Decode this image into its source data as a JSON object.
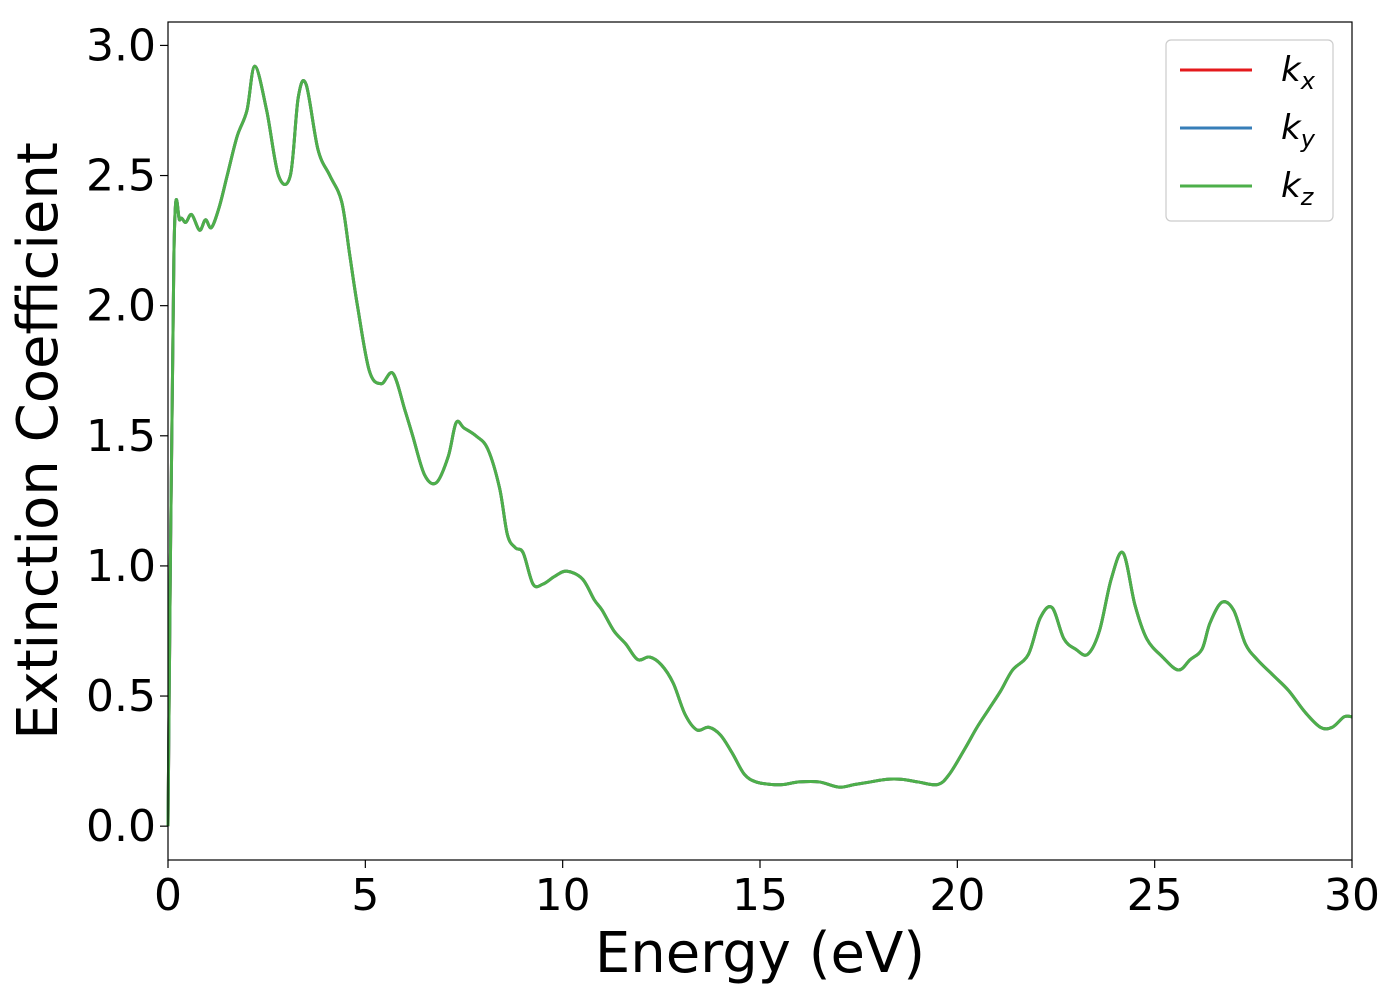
{
  "chart_data": {
    "type": "line",
    "xlabel": "Energy (eV)",
    "ylabel": "Extinction Coefficient",
    "xlim": [
      0,
      30
    ],
    "ylim": [
      -0.13,
      3.09
    ],
    "xticks": [
      0,
      5,
      10,
      15,
      20,
      25,
      30
    ],
    "xtick_labels": [
      "0",
      "5",
      "10",
      "15",
      "20",
      "25",
      "30"
    ],
    "yticks": [
      0.0,
      0.5,
      1.0,
      1.5,
      2.0,
      2.5,
      3.0
    ],
    "ytick_labels": [
      "0.0",
      "0.5",
      "1.0",
      "1.5",
      "2.0",
      "2.5",
      "3.0"
    ],
    "grid": false,
    "legend_position": "top-right",
    "x": [
      0,
      0.15,
      0.3,
      0.45,
      0.6,
      0.8,
      0.95,
      1.1,
      1.3,
      1.5,
      1.75,
      2.0,
      2.2,
      2.5,
      2.8,
      3.1,
      3.3,
      3.5,
      3.8,
      4.1,
      4.4,
      4.6,
      4.8,
      5.1,
      5.4,
      5.7,
      6.0,
      6.2,
      6.5,
      6.8,
      7.1,
      7.3,
      7.5,
      7.8,
      8.1,
      8.4,
      8.6,
      8.8,
      9.0,
      9.25,
      9.5,
      9.8,
      10.1,
      10.5,
      10.8,
      11.0,
      11.3,
      11.6,
      11.9,
      12.2,
      12.5,
      12.8,
      13.1,
      13.4,
      13.7,
      14.0,
      14.3,
      14.6,
      14.9,
      15.3,
      15.6,
      16.0,
      16.5,
      17.0,
      17.4,
      17.8,
      18.2,
      18.6,
      19.0,
      19.5,
      19.8,
      20.2,
      20.5,
      20.8,
      21.1,
      21.4,
      21.8,
      22.1,
      22.4,
      22.7,
      23.0,
      23.3,
      23.6,
      23.9,
      24.2,
      24.5,
      24.8,
      25.2,
      25.6,
      25.9,
      26.2,
      26.4,
      26.7,
      27.0,
      27.3,
      27.6,
      28.0,
      28.4,
      28.8,
      29.2,
      29.5,
      29.8,
      30.0
    ],
    "series": [
      {
        "name": "k_x",
        "color": "#e41a1c",
        "values": [
          0.0,
          2.2,
          2.33,
          2.32,
          2.35,
          2.29,
          2.33,
          2.3,
          2.38,
          2.5,
          2.65,
          2.75,
          2.92,
          2.75,
          2.5,
          2.5,
          2.8,
          2.85,
          2.6,
          2.5,
          2.4,
          2.2,
          2.0,
          1.75,
          1.7,
          1.74,
          1.6,
          1.5,
          1.35,
          1.32,
          1.42,
          1.55,
          1.53,
          1.5,
          1.45,
          1.3,
          1.12,
          1.07,
          1.05,
          0.93,
          0.93,
          0.96,
          0.98,
          0.95,
          0.87,
          0.83,
          0.75,
          0.7,
          0.64,
          0.65,
          0.62,
          0.55,
          0.43,
          0.37,
          0.38,
          0.35,
          0.28,
          0.2,
          0.17,
          0.16,
          0.16,
          0.17,
          0.17,
          0.15,
          0.16,
          0.17,
          0.18,
          0.18,
          0.17,
          0.16,
          0.2,
          0.3,
          0.38,
          0.45,
          0.52,
          0.6,
          0.66,
          0.8,
          0.84,
          0.72,
          0.68,
          0.66,
          0.75,
          0.95,
          1.05,
          0.85,
          0.72,
          0.65,
          0.6,
          0.64,
          0.68,
          0.78,
          0.86,
          0.83,
          0.7,
          0.64,
          0.58,
          0.52,
          0.44,
          0.38,
          0.38,
          0.42,
          0.42
        ]
      },
      {
        "name": "k_y",
        "color": "#377eb8",
        "values": [
          0.0,
          2.2,
          2.33,
          2.32,
          2.35,
          2.29,
          2.33,
          2.3,
          2.38,
          2.5,
          2.65,
          2.75,
          2.92,
          2.75,
          2.5,
          2.5,
          2.8,
          2.85,
          2.6,
          2.5,
          2.4,
          2.2,
          2.0,
          1.75,
          1.7,
          1.74,
          1.6,
          1.5,
          1.35,
          1.32,
          1.42,
          1.55,
          1.53,
          1.5,
          1.45,
          1.3,
          1.12,
          1.07,
          1.05,
          0.93,
          0.93,
          0.96,
          0.98,
          0.95,
          0.87,
          0.83,
          0.75,
          0.7,
          0.64,
          0.65,
          0.62,
          0.55,
          0.43,
          0.37,
          0.38,
          0.35,
          0.28,
          0.2,
          0.17,
          0.16,
          0.16,
          0.17,
          0.17,
          0.15,
          0.16,
          0.17,
          0.18,
          0.18,
          0.17,
          0.16,
          0.2,
          0.3,
          0.38,
          0.45,
          0.52,
          0.6,
          0.66,
          0.8,
          0.84,
          0.72,
          0.68,
          0.66,
          0.75,
          0.95,
          1.05,
          0.85,
          0.72,
          0.65,
          0.6,
          0.64,
          0.68,
          0.78,
          0.86,
          0.83,
          0.7,
          0.64,
          0.58,
          0.52,
          0.44,
          0.38,
          0.38,
          0.42,
          0.42
        ]
      },
      {
        "name": "k_z",
        "color": "#4daf4a",
        "values": [
          0.0,
          2.2,
          2.33,
          2.32,
          2.35,
          2.29,
          2.33,
          2.3,
          2.38,
          2.5,
          2.65,
          2.75,
          2.92,
          2.75,
          2.5,
          2.5,
          2.8,
          2.85,
          2.6,
          2.5,
          2.4,
          2.2,
          2.0,
          1.75,
          1.7,
          1.74,
          1.6,
          1.5,
          1.35,
          1.32,
          1.42,
          1.55,
          1.53,
          1.5,
          1.45,
          1.3,
          1.12,
          1.07,
          1.05,
          0.93,
          0.93,
          0.96,
          0.98,
          0.95,
          0.87,
          0.83,
          0.75,
          0.7,
          0.64,
          0.65,
          0.62,
          0.55,
          0.43,
          0.37,
          0.38,
          0.35,
          0.28,
          0.2,
          0.17,
          0.16,
          0.16,
          0.17,
          0.17,
          0.15,
          0.16,
          0.17,
          0.18,
          0.18,
          0.17,
          0.16,
          0.2,
          0.3,
          0.38,
          0.45,
          0.52,
          0.6,
          0.66,
          0.8,
          0.84,
          0.72,
          0.68,
          0.66,
          0.75,
          0.95,
          1.05,
          0.85,
          0.72,
          0.65,
          0.6,
          0.64,
          0.68,
          0.78,
          0.86,
          0.83,
          0.7,
          0.64,
          0.58,
          0.52,
          0.44,
          0.38,
          0.38,
          0.42,
          0.42
        ]
      }
    ],
    "legend": [
      {
        "base": "k",
        "sub": "x"
      },
      {
        "base": "k",
        "sub": "y"
      },
      {
        "base": "k",
        "sub": "z"
      }
    ]
  }
}
